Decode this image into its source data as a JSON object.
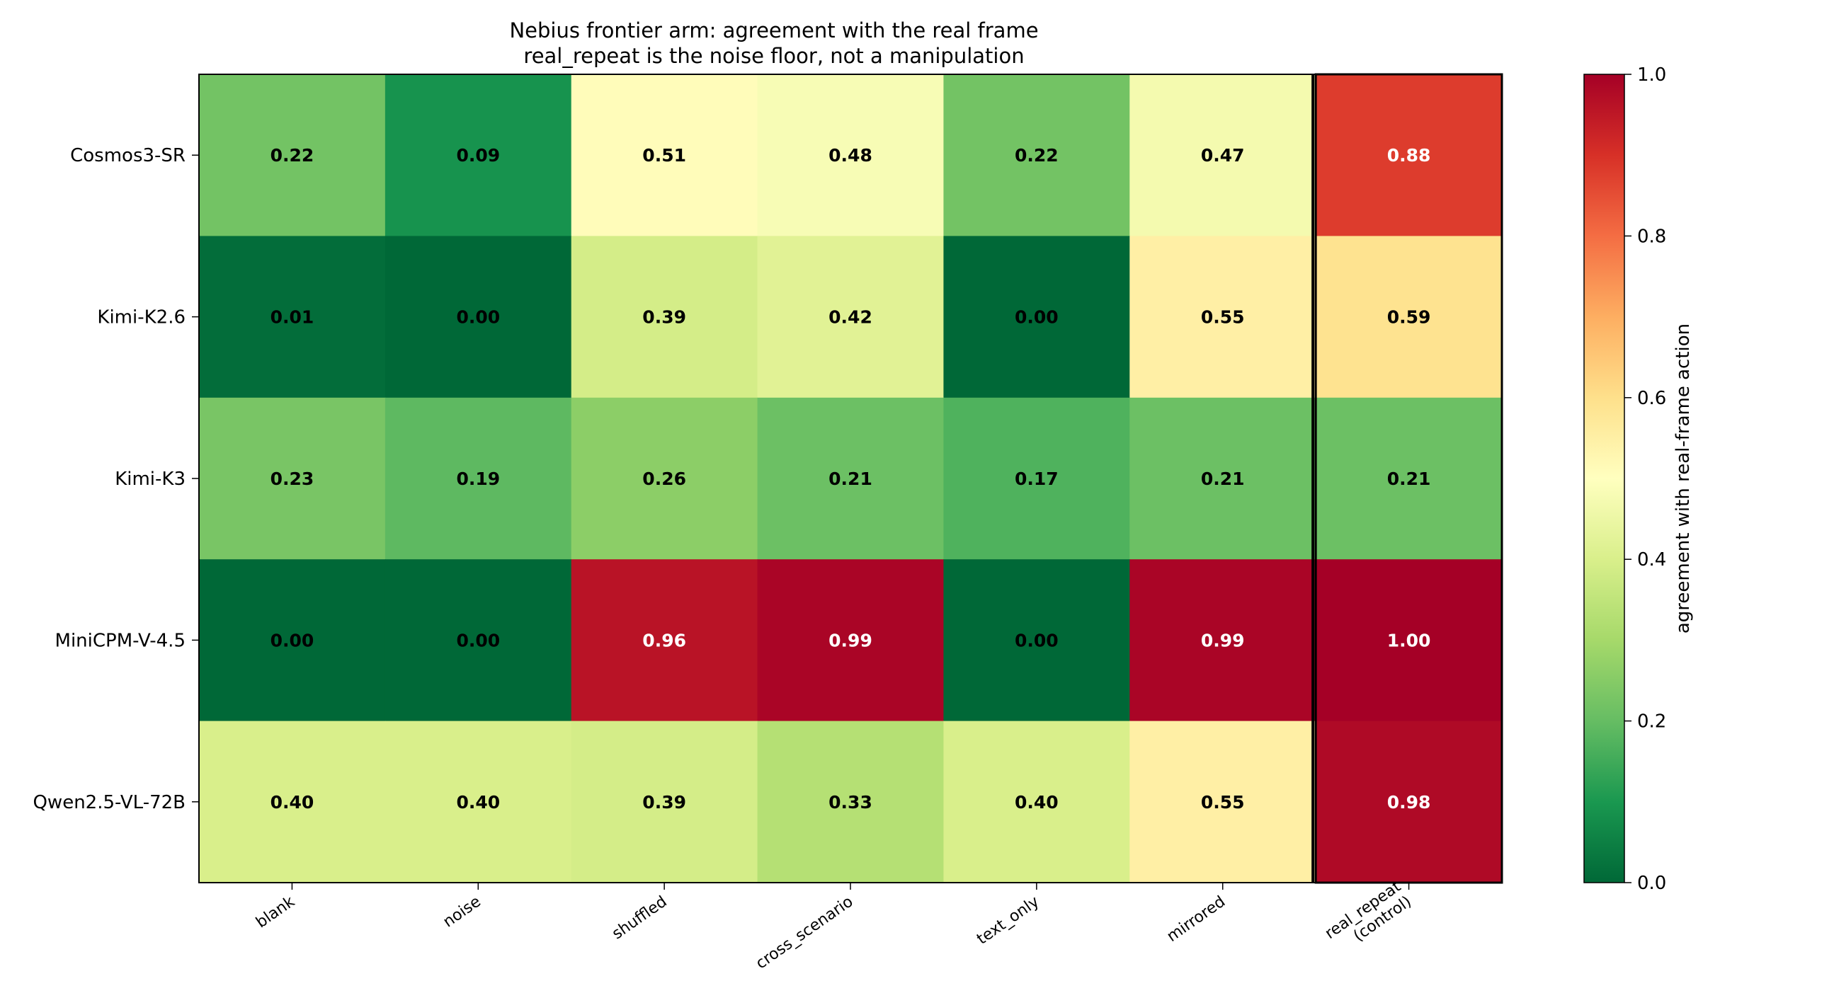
{
  "chart_data": {
    "type": "heatmap",
    "title": "Nebius frontier arm: agreement with the real frame",
    "subtitle": "real_repeat is the noise floor, not a manipulation",
    "rows": [
      "Cosmos3-SR",
      "Kimi-K2.6",
      "Kimi-K3",
      "MiniCPM-V-4.5",
      "Qwen2.5-VL-72B"
    ],
    "columns": [
      "blank",
      "noise",
      "shuffled",
      "cross_scenario",
      "text_only",
      "mirrored",
      "real_repeat\n(control)"
    ],
    "values": [
      [
        0.22,
        0.09,
        0.51,
        0.48,
        0.22,
        0.47,
        0.88
      ],
      [
        0.01,
        0.0,
        0.39,
        0.42,
        0.0,
        0.55,
        0.59
      ],
      [
        0.23,
        0.19,
        0.26,
        0.21,
        0.17,
        0.21,
        0.21
      ],
      [
        0.0,
        0.0,
        0.96,
        0.99,
        0.0,
        0.99,
        1.0
      ],
      [
        0.4,
        0.4,
        0.39,
        0.33,
        0.4,
        0.55,
        0.98
      ]
    ],
    "colorbar": {
      "label": "agreement with real-frame action",
      "range": [
        0.0,
        1.0
      ],
      "ticks": [
        "0.0",
        "0.2",
        "0.4",
        "0.6",
        "0.8",
        "1.0"
      ],
      "colormap": "RdYlGn_r"
    },
    "highlighted_column": "real_repeat\n(control)",
    "separator_before_column": "real_repeat\n(control)"
  }
}
